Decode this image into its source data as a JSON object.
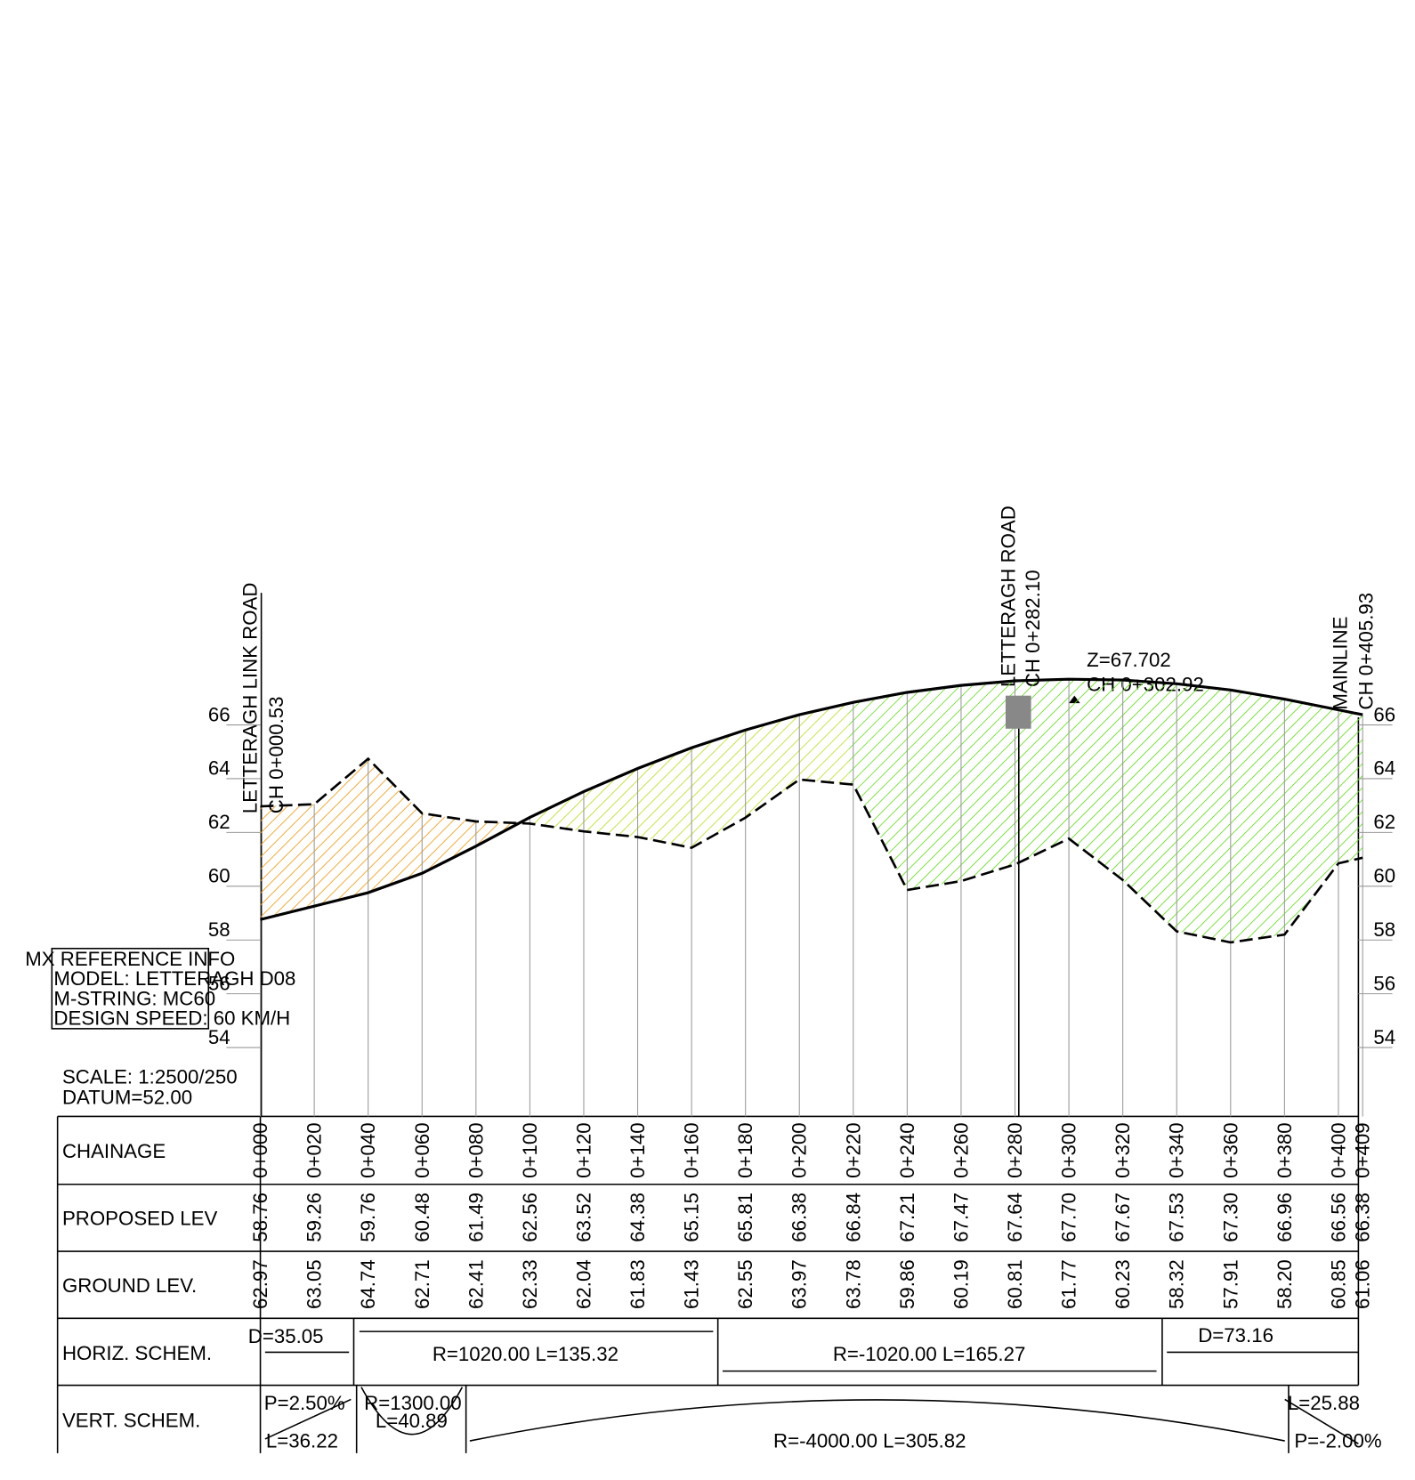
{
  "annotations": {
    "link_road": "LETTERAGH LINK ROAD",
    "link_ch": "CH 0+000.53",
    "road": "LETTERAGH ROAD",
    "road_ch": "CH 0+282.10",
    "crest_z": "Z=67.702",
    "crest_ch": "CH 0+302.92",
    "mainline": "MAINLINE",
    "mainline_ch": "CH 0+405.93"
  },
  "reference": {
    "lines": [
      "MX REFERENCE INFO",
      "MODEL: LETTERAGH D08",
      "M-STRING: MC60",
      "DESIGN SPEED: 60 KM/H"
    ]
  },
  "scale": "SCALE: 1:2500/250",
  "datum": "DATUM=52.00",
  "levels": [
    54,
    56,
    58,
    60,
    62,
    64,
    66
  ],
  "table": {
    "row_labels": [
      "CHAINAGE",
      "PROPOSED LEV",
      "GROUND LEV.",
      "HORIZ. SCHEM.",
      "VERT. SCHEM."
    ],
    "chainage": [
      "0+000",
      "0+020",
      "0+040",
      "0+060",
      "0+080",
      "0+100",
      "0+120",
      "0+140",
      "0+160",
      "0+180",
      "0+200",
      "0+220",
      "0+240",
      "0+260",
      "0+280",
      "0+300",
      "0+320",
      "0+340",
      "0+360",
      "0+380",
      "0+400",
      "0+409"
    ],
    "proposed": [
      "58.76",
      "59.26",
      "59.76",
      "60.48",
      "61.49",
      "62.56",
      "63.52",
      "64.38",
      "65.15",
      "65.81",
      "66.38",
      "66.84",
      "67.21",
      "67.47",
      "67.64",
      "67.70",
      "67.67",
      "67.53",
      "67.30",
      "66.96",
      "66.56",
      "66.38"
    ],
    "ground": [
      "62.97",
      "63.05",
      "64.74",
      "62.71",
      "62.41",
      "62.33",
      "62.04",
      "61.83",
      "61.43",
      "62.55",
      "63.97",
      "63.78",
      "59.86",
      "60.19",
      "60.81",
      "61.77",
      "60.23",
      "58.32",
      "57.91",
      "58.20",
      "60.85",
      "61.06"
    ],
    "horizontal": [
      "D=35.05",
      "R=1020.00 L=135.32",
      "R=-1020.00 L=165.27",
      "D=73.16"
    ],
    "vertical": [
      "P=2.50%",
      "L=36.22",
      "R=1300.00",
      "L=40.89",
      "R=-4000.00 L=305.82",
      "L=25.88",
      "P=-2.00%"
    ]
  }
}
